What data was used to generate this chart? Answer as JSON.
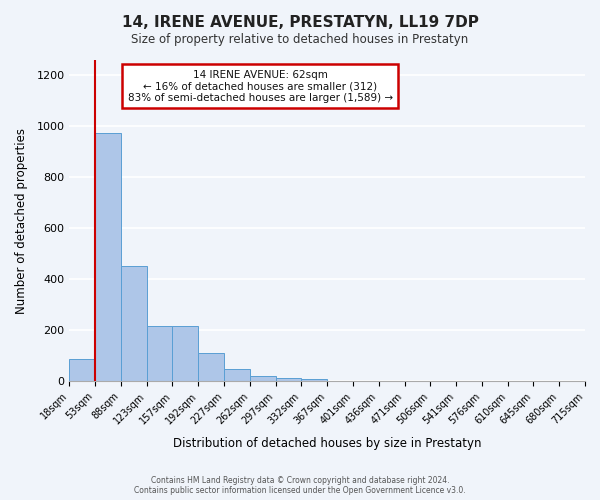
{
  "title": "14, IRENE AVENUE, PRESTATYN, LL19 7DP",
  "subtitle": "Size of property relative to detached houses in Prestatyn",
  "xlabel": "Distribution of detached houses by size in Prestatyn",
  "ylabel": "Number of detached properties",
  "bar_values": [
    85,
    975,
    450,
    215,
    215,
    110,
    47,
    20,
    13,
    10,
    0,
    0,
    0,
    0,
    0,
    0,
    0,
    0,
    0,
    0
  ],
  "bin_labels": [
    "18sqm",
    "53sqm",
    "88sqm",
    "123sqm",
    "157sqm",
    "192sqm",
    "227sqm",
    "262sqm",
    "297sqm",
    "332sqm",
    "367sqm",
    "401sqm",
    "436sqm",
    "471sqm",
    "506sqm",
    "541sqm",
    "576sqm",
    "610sqm",
    "645sqm",
    "680sqm",
    "715sqm"
  ],
  "bar_color": "#aec6e8",
  "bar_edge_color": "#5a9fd4",
  "vline_x": 1,
  "vline_color": "#cc0000",
  "annotation_title": "14 IRENE AVENUE: 62sqm",
  "annotation_line1": "← 16% of detached houses are smaller (312)",
  "annotation_line2": "83% of semi-detached houses are larger (1,589) →",
  "annotation_box_color": "#ffffff",
  "annotation_box_edge_color": "#cc0000",
  "ylim": [
    0,
    1260
  ],
  "yticks": [
    0,
    200,
    400,
    600,
    800,
    1000,
    1200
  ],
  "footer_line1": "Contains HM Land Registry data © Crown copyright and database right 2024.",
  "footer_line2": "Contains public sector information licensed under the Open Government Licence v3.0.",
  "background_color": "#f0f4fa",
  "grid_color": "#ffffff"
}
